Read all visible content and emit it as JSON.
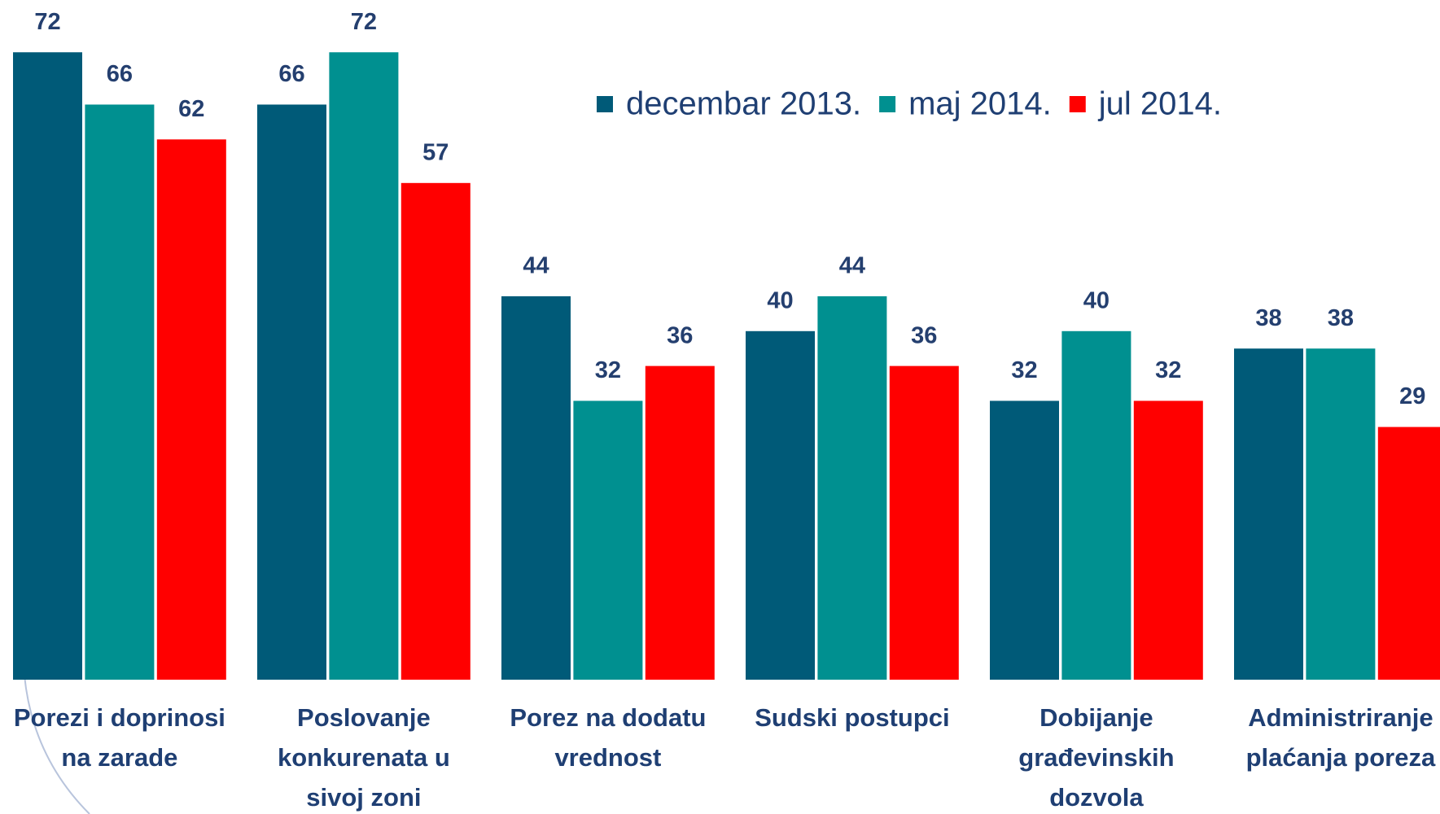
{
  "chart_data": {
    "type": "bar",
    "categories": [
      [
        "Porezi i doprinosi",
        "na zarade"
      ],
      [
        "Poslovanje",
        "konkurenata u",
        "sivoj zoni"
      ],
      [
        "Porez na dodatu",
        "vrednost"
      ],
      [
        "Sudski postupci"
      ],
      [
        "Dobijanje",
        "građevinskih",
        "dozvola"
      ],
      [
        "Administriranje",
        "plaćanja poreza"
      ]
    ],
    "series": [
      {
        "name": "decembar 2013.",
        "color": "#005a78",
        "values": [
          72,
          66,
          44,
          40,
          32,
          38
        ]
      },
      {
        "name": "maj 2014.",
        "color": "#009090",
        "values": [
          66,
          72,
          32,
          44,
          40,
          38
        ]
      },
      {
        "name": "jul 2014.",
        "color": "#ff0000",
        "values": [
          62,
          57,
          36,
          36,
          32,
          29
        ]
      }
    ],
    "ylim": [
      0,
      78
    ],
    "legend": "top-right"
  }
}
